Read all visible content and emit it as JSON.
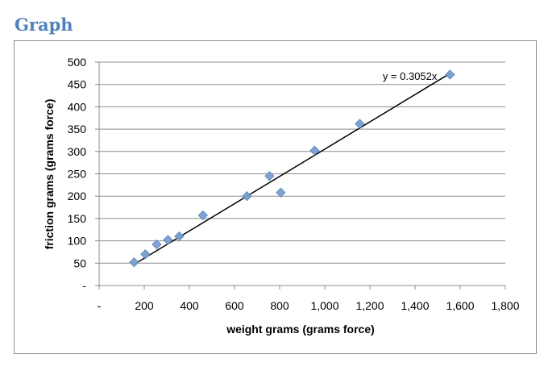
{
  "page": {
    "heading": "Graph"
  },
  "chart_data": {
    "type": "scatter",
    "title": "",
    "xlabel": "weight grams (grams force)",
    "ylabel": "friction grams (grams force)",
    "xlim": [
      0,
      1800
    ],
    "ylim": [
      0,
      500
    ],
    "x_ticks": [
      0,
      200,
      400,
      600,
      800,
      1000,
      1200,
      1400,
      1600,
      1800
    ],
    "x_tick_labels": [
      "-",
      "200",
      "400",
      "600",
      "800",
      "1,000",
      "1,200",
      "1,400",
      "1,600",
      "1,800"
    ],
    "y_ticks": [
      0,
      50,
      100,
      150,
      200,
      250,
      300,
      350,
      400,
      450,
      500
    ],
    "y_tick_labels": [
      "-",
      "50",
      "100",
      "150",
      "200",
      "250",
      "300",
      "350",
      "400",
      "450",
      "500"
    ],
    "grid": {
      "horizontal": true,
      "vertical": false
    },
    "series": [
      {
        "points": [
          [
            155,
            52
          ],
          [
            205,
            70
          ],
          [
            255,
            92
          ],
          [
            305,
            102
          ],
          [
            355,
            110
          ],
          [
            460,
            157
          ],
          [
            655,
            200
          ],
          [
            755,
            245
          ],
          [
            805,
            208
          ],
          [
            955,
            302
          ],
          [
            1155,
            362
          ],
          [
            1555,
            472
          ]
        ],
        "color": "#7aa0cf"
      }
    ],
    "trendline": {
      "slope": 0.3052,
      "x_range": [
        155,
        1555
      ],
      "label": "y = 0.3052x",
      "color": "#000000"
    }
  }
}
